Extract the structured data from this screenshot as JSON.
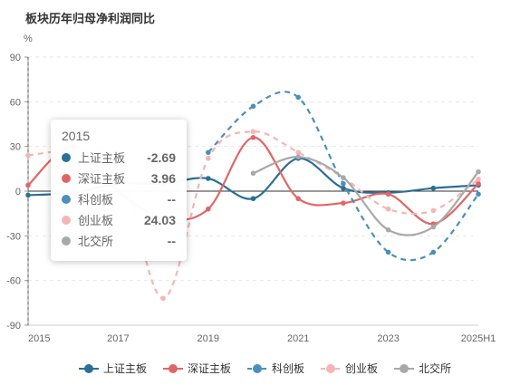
{
  "chart_data": {
    "type": "line",
    "title": "板块历年归母净利润同比",
    "ylabel": "%",
    "xlabel": "",
    "x": [
      "2015",
      "2016",
      "2017",
      "2018",
      "2019",
      "2020",
      "2021",
      "2022",
      "2023",
      "2024",
      "2025H1"
    ],
    "x_tick_labels": [
      "2015",
      "2017",
      "2019",
      "2021",
      "2023",
      "2025H1"
    ],
    "ylim": [
      -90,
      90
    ],
    "y_ticks": [
      -90,
      -60,
      -30,
      0,
      30,
      60,
      90
    ],
    "grid": true,
    "legend_position": "bottom",
    "series": [
      {
        "name": "上证主板",
        "color": "#2a6f97",
        "dashed": false,
        "values": [
          -2.69,
          -1,
          5,
          5,
          8.5,
          -5,
          22,
          2,
          -1,
          2,
          4
        ]
      },
      {
        "name": "深证主板",
        "color": "#e06666",
        "dashed": false,
        "values": [
          3.96,
          30,
          0,
          -18,
          -12,
          36,
          -5,
          -8,
          -2,
          -22,
          5
        ]
      },
      {
        "name": "科创板",
        "color": "#4a90b8",
        "dashed": true,
        "values": [
          null,
          null,
          null,
          null,
          26,
          57,
          63,
          5,
          -41,
          -41,
          -2
        ]
      },
      {
        "name": "创业板",
        "color": "#f4b5b5",
        "dashed": true,
        "values": [
          24.03,
          27,
          20,
          -72,
          22,
          40,
          26,
          9,
          -12,
          -13,
          8
        ]
      },
      {
        "name": "北交所",
        "color": "#a9a9a9",
        "dashed": false,
        "values": [
          null,
          null,
          null,
          null,
          null,
          12,
          23,
          9,
          -26,
          -24,
          13
        ]
      }
    ],
    "tooltip": {
      "title": "2015",
      "rows": [
        {
          "name": "上证主板",
          "value": "-2.69",
          "color": "#2a6f97"
        },
        {
          "name": "深证主板",
          "value": "3.96",
          "color": "#e06666"
        },
        {
          "name": "科创板",
          "value": "--",
          "color": "#4a90b8"
        },
        {
          "name": "创业板",
          "value": "24.03",
          "color": "#f4b5b5"
        },
        {
          "name": "北交所",
          "value": "--",
          "color": "#a9a9a9"
        }
      ]
    }
  }
}
